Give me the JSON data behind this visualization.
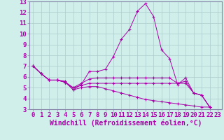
{
  "xlabel": "Windchill (Refroidissement éolien,°C)",
  "background_color": "#d0eeea",
  "grid_color": "#aacccc",
  "line_color": "#aa00aa",
  "line1": [
    7.0,
    6.3,
    5.7,
    5.7,
    5.6,
    4.8,
    5.3,
    6.5,
    6.5,
    6.7,
    7.9,
    9.5,
    10.4,
    12.1,
    12.8,
    11.6,
    8.5,
    7.7,
    5.3,
    5.9,
    4.5,
    4.3,
    3.2
  ],
  "line2": [
    7.0,
    6.3,
    5.7,
    5.7,
    5.5,
    5.0,
    5.4,
    5.8,
    5.9,
    5.9,
    5.9,
    5.9,
    5.9,
    5.9,
    5.9,
    5.9,
    5.9,
    5.9,
    5.4,
    5.6,
    4.5,
    4.3,
    3.2
  ],
  "line3": [
    7.0,
    6.3,
    5.7,
    5.7,
    5.5,
    5.0,
    5.2,
    5.4,
    5.4,
    5.4,
    5.4,
    5.4,
    5.4,
    5.4,
    5.4,
    5.4,
    5.4,
    5.4,
    5.4,
    5.4,
    4.5,
    4.3,
    3.2
  ],
  "line4": [
    7.0,
    6.3,
    5.7,
    5.7,
    5.5,
    4.8,
    5.0,
    5.1,
    5.1,
    4.9,
    4.7,
    4.5,
    4.3,
    4.1,
    3.9,
    3.8,
    3.7,
    3.6,
    3.5,
    3.4,
    3.3,
    3.2,
    3.2
  ],
  "xlim": [
    -0.5,
    23.5
  ],
  "ylim": [
    3,
    13
  ],
  "yticks": [
    3,
    4,
    5,
    6,
    7,
    8,
    9,
    10,
    11,
    12,
    13
  ],
  "xticks": [
    0,
    1,
    2,
    3,
    4,
    5,
    6,
    7,
    8,
    9,
    10,
    11,
    12,
    13,
    14,
    15,
    16,
    17,
    18,
    19,
    20,
    21,
    22,
    23
  ],
  "fontsize": 6.5,
  "xlabel_fontsize": 7
}
